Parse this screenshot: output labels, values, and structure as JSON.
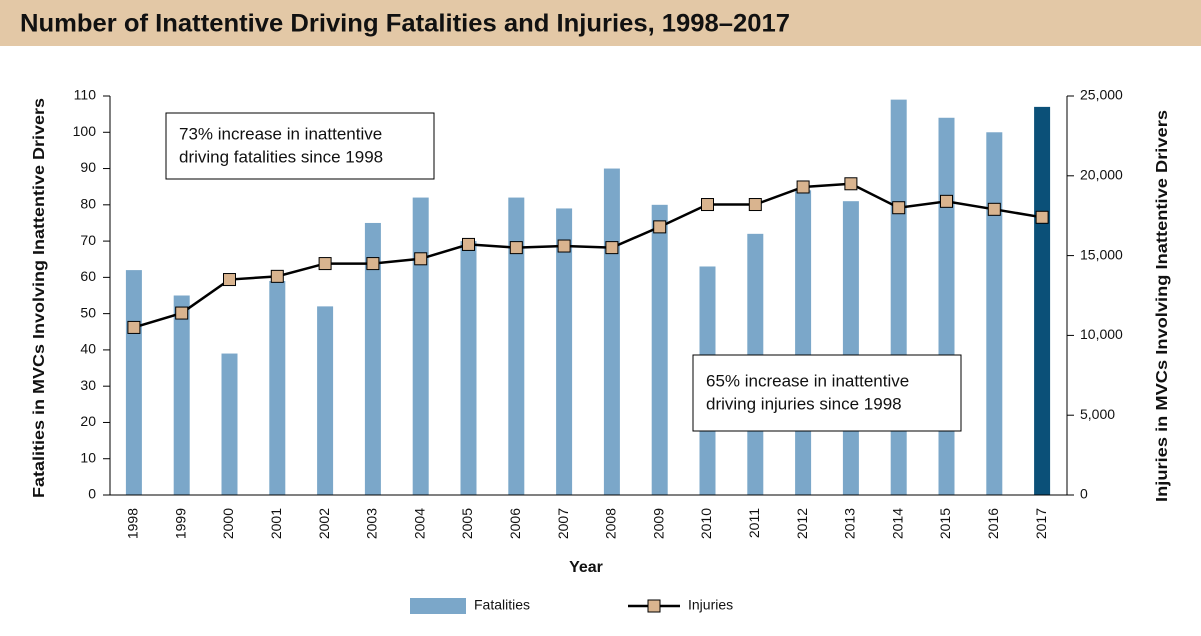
{
  "chart_data": {
    "type": "bar_line",
    "title": "Number of Inattentive Driving Fatalities and Injuries, 1998–2017",
    "xlabel": "Year",
    "ylabel": "Fatalities in MVCs Involving Inattentive Drivers",
    "y2label": "Injuries in MVCs Involving Inattentive Drivers",
    "categories": [
      "1998",
      "1999",
      "2000",
      "2001",
      "2002",
      "2003",
      "2004",
      "2005",
      "2006",
      "2007",
      "2008",
      "2009",
      "2010",
      "2011",
      "2012",
      "2013",
      "2014",
      "2015",
      "2016",
      "2017"
    ],
    "series": [
      {
        "name": "Fatalities",
        "type": "bar",
        "color": "#7ba7c9",
        "colors": [
          "#7ba7c9",
          "#7ba7c9",
          "#7ba7c9",
          "#7ba7c9",
          "#7ba7c9",
          "#7ba7c9",
          "#7ba7c9",
          "#7ba7c9",
          "#7ba7c9",
          "#7ba7c9",
          "#7ba7c9",
          "#7ba7c9",
          "#7ba7c9",
          "#7ba7c9",
          "#7ba7c9",
          "#7ba7c9",
          "#7ba7c9",
          "#7ba7c9",
          "#7ba7c9",
          "#0b5078"
        ],
        "values": [
          62,
          55,
          39,
          59,
          52,
          75,
          82,
          70,
          82,
          79,
          90,
          80,
          63,
          72,
          84,
          81,
          109,
          104,
          100,
          107
        ]
      },
      {
        "name": "Injuries",
        "type": "line",
        "axis": "y2",
        "color": "#000000",
        "marker_color": "#d9b48f",
        "values": [
          10500,
          11400,
          13500,
          13700,
          14500,
          14500,
          14800,
          15700,
          15500,
          15600,
          15500,
          16800,
          18200,
          18200,
          19300,
          19500,
          18000,
          18400,
          17900,
          17400
        ]
      }
    ],
    "ylim": [
      0,
      110
    ],
    "yticks": [
      0,
      10,
      20,
      30,
      40,
      50,
      60,
      70,
      80,
      90,
      100,
      110
    ],
    "y2lim": [
      0,
      25000
    ],
    "y2ticks": [
      0,
      {
        "value": 5000,
        "label": "5,000"
      },
      {
        "value": 10000,
        "label": "10,000"
      },
      {
        "value": 15000,
        "label": "15,000"
      },
      {
        "value": 20000,
        "label": "20,000"
      },
      {
        "value": 25000,
        "label": "25,000"
      }
    ],
    "annotations": [
      {
        "lines": [
          "73% increase in inattentive",
          "driving fatalities since 1998"
        ]
      },
      {
        "lines": [
          "65% increase in inattentive",
          "driving injuries since 1998"
        ]
      }
    ],
    "title_background": "#e3c8a6"
  }
}
